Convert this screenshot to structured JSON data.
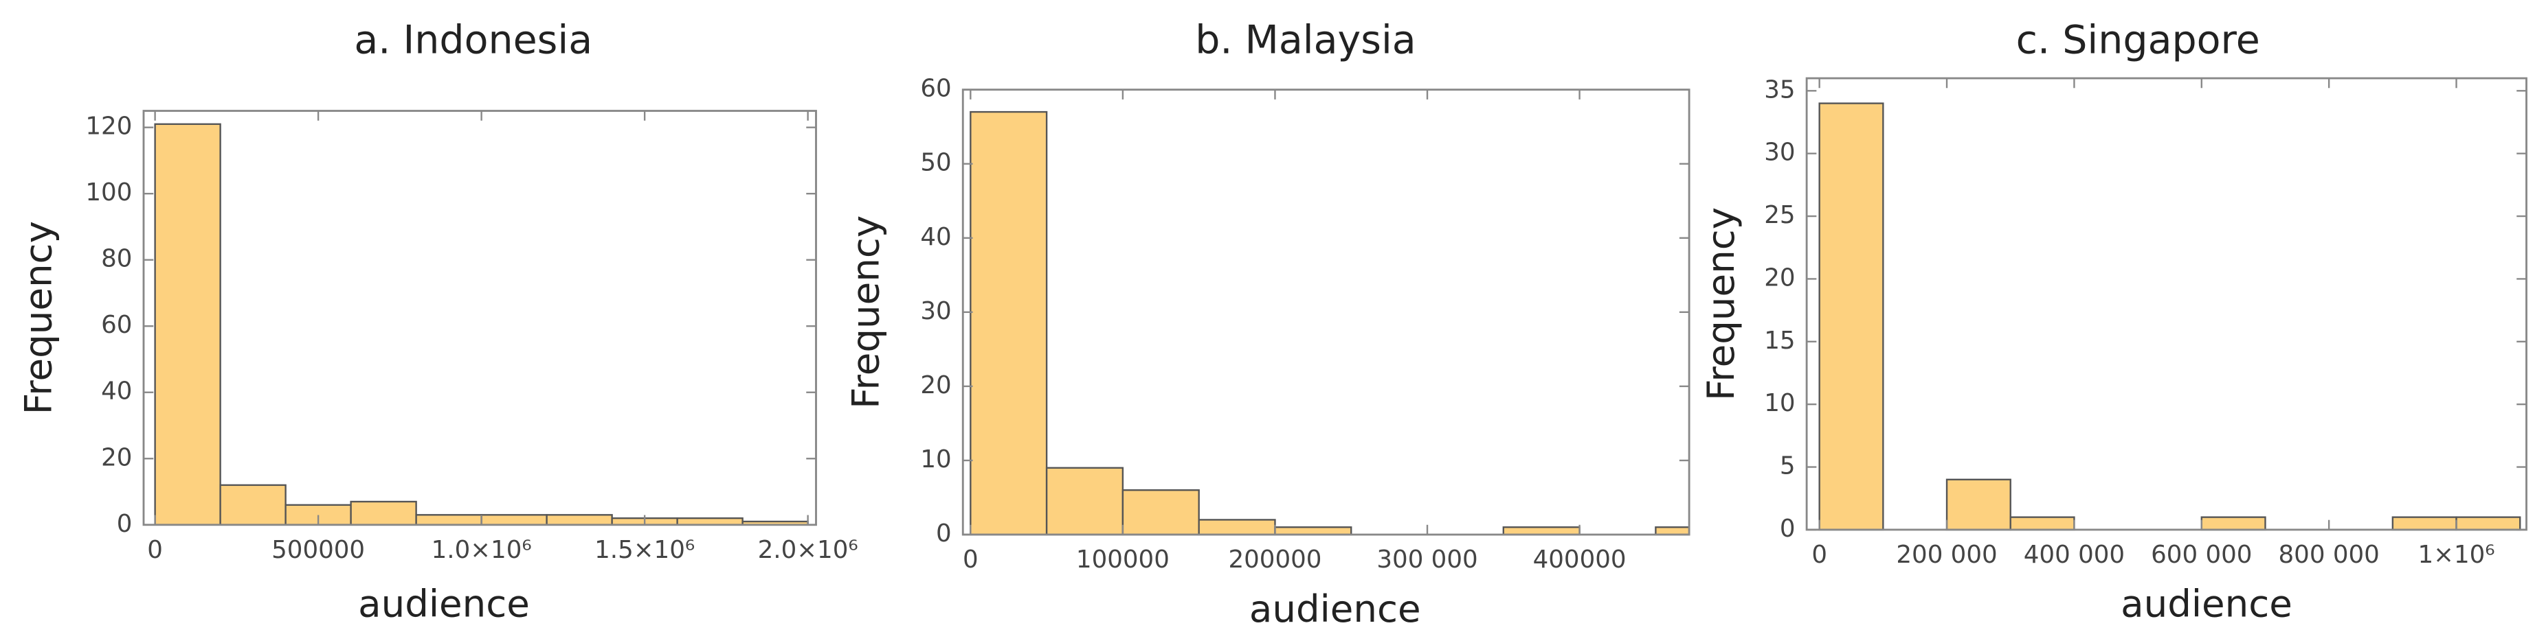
{
  "chart_data": [
    {
      "type": "histogram",
      "title": "a. Indonesia",
      "xlabel": "audience",
      "ylabel": "Frequency",
      "bins": [
        0,
        200000,
        400000,
        600000,
        800000,
        1000000,
        1200000,
        1400000,
        1600000,
        1800000,
        2000000
      ],
      "values": [
        121,
        12,
        6,
        7,
        3,
        3,
        3,
        2,
        2,
        1
      ],
      "color": "#fdd17f",
      "edgecolor": "#555555",
      "xlim": [
        -35000,
        2025000
      ],
      "ylim": [
        0,
        125
      ],
      "xticks": [
        0,
        500000,
        {
          "value": 1000000,
          "label": "1.0×10⁶"
        },
        {
          "value": 1500000,
          "label": "1.5×10⁶"
        },
        {
          "value": 2000000,
          "label": "2.0×10⁶"
        }
      ],
      "yticks": [
        0,
        20,
        40,
        60,
        80,
        100,
        120
      ]
    },
    {
      "type": "histogram",
      "title": "b. Malaysia",
      "xlabel": "audience",
      "ylabel": "Frequency",
      "bins": [
        0,
        50000,
        100000,
        150000,
        200000,
        250000,
        300000,
        350000,
        400000,
        450000,
        500000
      ],
      "values": [
        57,
        9,
        6,
        2,
        1,
        0,
        0,
        1,
        0,
        1
      ],
      "color": "#fdd17f",
      "edgecolor": "#555555",
      "xlim": [
        -5000,
        472000
      ],
      "ylim": [
        0,
        60
      ],
      "xticks": [
        0,
        100000,
        200000,
        {
          "value": 300000,
          "label": "300 000"
        },
        400000
      ],
      "yticks": [
        0,
        10,
        20,
        30,
        40,
        50,
        60
      ]
    },
    {
      "type": "histogram",
      "title": "c. Singapore",
      "xlabel": "audience",
      "ylabel": "Frequency",
      "bins": [
        0,
        100000,
        200000,
        300000,
        400000,
        500000,
        600000,
        700000,
        800000,
        900000,
        1000000,
        1100000
      ],
      "values": [
        34,
        0,
        4,
        1,
        0,
        0,
        1,
        0,
        0,
        1,
        1
      ],
      "color": "#fdd17f",
      "edgecolor": "#555555",
      "xlim": [
        -20000,
        1110000
      ],
      "ylim": [
        0,
        36
      ],
      "xticks": [
        0,
        {
          "value": 200000,
          "label": "200 000"
        },
        {
          "value": 400000,
          "label": "400 000"
        },
        {
          "value": 600000,
          "label": "600 000"
        },
        {
          "value": 800000,
          "label": "800 000"
        },
        {
          "value": 1000000,
          "label": "1×10⁶"
        }
      ],
      "yticks": [
        0,
        5,
        10,
        15,
        20,
        25,
        30,
        35
      ]
    }
  ]
}
